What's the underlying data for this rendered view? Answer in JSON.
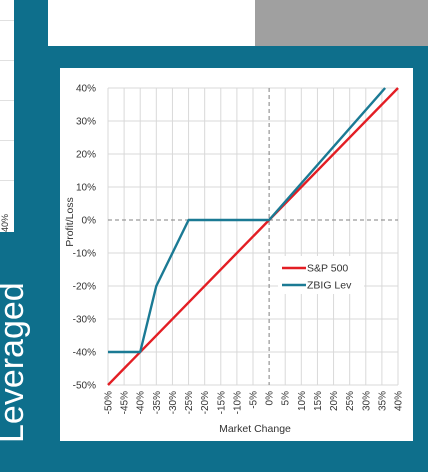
{
  "side_title": "Leveraged",
  "side_chart_tick": "40%",
  "colors": {
    "background": "#0e6f8c",
    "sp500": "#e31e24",
    "zbig": "#1b7a94",
    "grid": "#d9d9d9",
    "zero_line": "#808080"
  },
  "chart_data": {
    "type": "line",
    "title": "",
    "xlabel": "Market Change",
    "ylabel": "Profit/Loss",
    "xlim": [
      -50,
      40
    ],
    "ylim": [
      -50,
      40
    ],
    "x_ticks": [
      "-50%",
      "-45%",
      "-40%",
      "-35%",
      "-30%",
      "-25%",
      "-20%",
      "-15%",
      "-10%",
      "-5%",
      "0%",
      "5%",
      "10%",
      "15%",
      "20%",
      "25%",
      "30%",
      "35%",
      "40%"
    ],
    "y_ticks": [
      "40%",
      "30%",
      "20%",
      "10%",
      "0%",
      "-10%",
      "-20%",
      "-30%",
      "-40%",
      "-50%"
    ],
    "grid": "vertical and horizontal",
    "legend_position": "right-center",
    "series": [
      {
        "name": "S&P 500",
        "color": "#e31e24",
        "points": [
          [
            -50,
            -50
          ],
          [
            40,
            40
          ]
        ]
      },
      {
        "name": "ZBIG Lev",
        "color": "#1b7a94",
        "points": [
          [
            -50,
            -40
          ],
          [
            -40,
            -40
          ],
          [
            -35,
            -20
          ],
          [
            -25,
            0
          ],
          [
            0,
            0
          ],
          [
            36,
            40
          ]
        ]
      }
    ]
  }
}
